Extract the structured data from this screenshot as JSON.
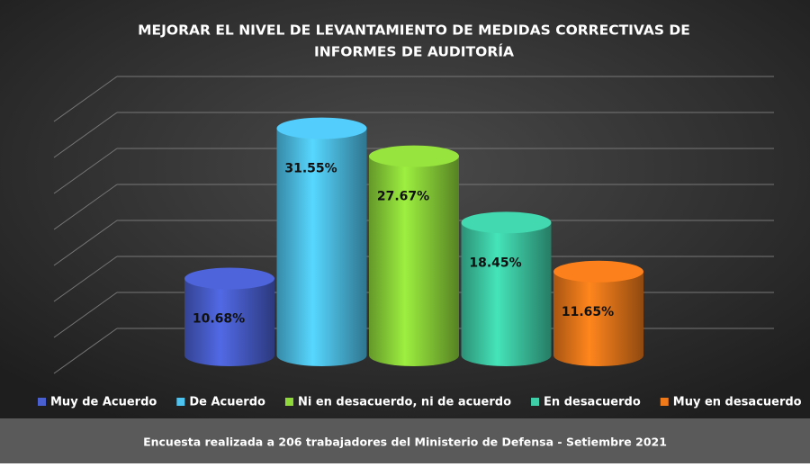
{
  "chart_data": {
    "type": "bar",
    "title": [
      "MEJORAR EL NIVEL DE LEVANTAMIENTO DE MEDIDAS CORRECTIVAS DE",
      "INFORMES DE AUDITORÍA"
    ],
    "series": [
      {
        "name": "Muy de Acuerdo",
        "color": "#4a5fd0",
        "values": [
          10.68
        ],
        "value_labels": [
          "10.68%"
        ]
      },
      {
        "name": "De Acuerdo",
        "color": "#4fc3ef",
        "values": [
          31.55
        ],
        "value_labels": [
          "31.55%"
        ]
      },
      {
        "name": "Ni en desacuerdo, ni de acuerdo",
        "color": "#8fd93a",
        "values": [
          27.67
        ],
        "value_labels": [
          "27.67%"
        ]
      },
      {
        "name": "En desacuerdo",
        "color": "#3fcfa8",
        "values": [
          18.45
        ],
        "value_labels": [
          "18.45%"
        ]
      },
      {
        "name": "Muy en desacuerdo",
        "color": "#f07a1a",
        "values": [
          11.65
        ],
        "value_labels": [
          "11.65%"
        ]
      }
    ],
    "ylim": [
      0,
      35
    ],
    "yticks": [
      0,
      5,
      10,
      15,
      20,
      25,
      30,
      35
    ],
    "grid": true,
    "footer": "Encuesta realizada a 206 trabajadores del Ministerio de Defensa - Setiembre 2021"
  }
}
